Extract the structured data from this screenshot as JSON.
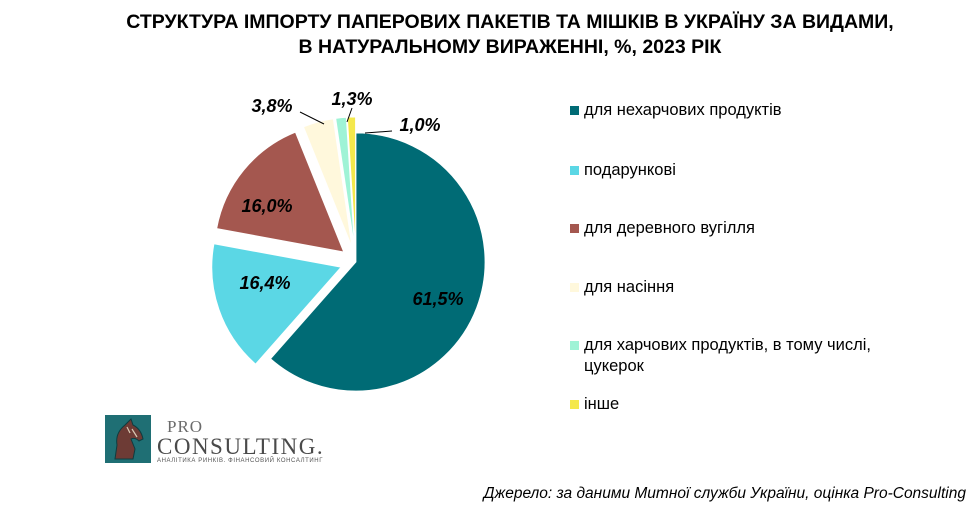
{
  "chart_data": {
    "type": "pie",
    "title": "СТРУКТУРА ІМПОРТУ ПАПЕРОВИХ ПАКЕТІВ ТА МІШКІВ В УКРАЇНУ ЗА ВИДАМИ, В НАТУРАЛЬНОМУ ВИРАЖЕННІ, %, 2023 РІК",
    "title_lines": [
      "СТРУКТУРА ІМПОРТУ ПАПЕРОВИХ ПАКЕТІВ ТА МІШКІВ В УКРАЇНУ ЗА ВИДАМИ,",
      "В НАТУРАЛЬНОМУ ВИРАЖЕННІ, %, 2023 РІК"
    ],
    "slices": [
      {
        "label": "для нехарчових продуктів",
        "value": 61.5,
        "value_label": "61,5%",
        "color": "#006B75",
        "exploded": false
      },
      {
        "label": "подарункові",
        "value": 16.4,
        "value_label": "16,4%",
        "color": "#5BD7E5",
        "exploded": true
      },
      {
        "label": "для деревного вугілля",
        "value": 16.0,
        "value_label": "16,0%",
        "color": "#A4574F",
        "exploded": true
      },
      {
        "label": "для насіння",
        "value": 3.8,
        "value_label": "3,8%",
        "color": "#FFF8DC",
        "exploded": true
      },
      {
        "label": "для харчових продуктів, в тому числі, цукерок",
        "value": 1.3,
        "value_label": "1,3%",
        "color": "#9FF3D6",
        "exploded": true
      },
      {
        "label": "інше",
        "value": 1.0,
        "value_label": "1,0%",
        "color": "#F4E84C",
        "exploded": true
      }
    ],
    "legend_position": "right"
  },
  "source": "Джерело: за даними Митної служби України, оцінка Pro-Consulting",
  "logo": {
    "pro": "PRO",
    "consulting": "CONSULTING.",
    "tagline": "АНАЛІТИКА РИНКІВ. ФІНАНСОВИЙ КОНСАЛТИНГ"
  }
}
